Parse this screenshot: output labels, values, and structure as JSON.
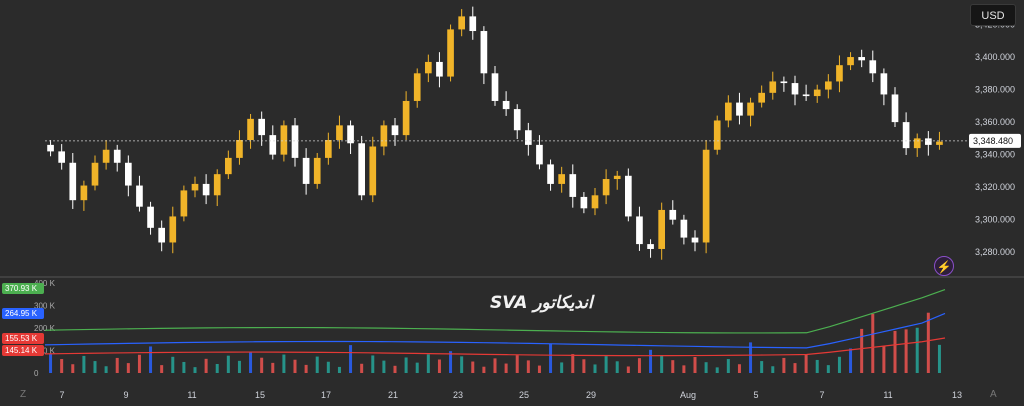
{
  "currency_button": "USD",
  "indicator_title": "اندیکاتور SVA",
  "corner_left": "Z",
  "corner_right": "A",
  "colors": {
    "background": "#2b2b2b",
    "bull": "#f0b429",
    "bear": "#ffffff",
    "vol_green": "#26a69a",
    "vol_red": "#ef5350",
    "line_green": "#4caf50",
    "line_blue": "#2962ff",
    "line_red": "#e53935",
    "text": "#d1d4dc",
    "grid": "#3a3a3a"
  },
  "chart_data": [
    {
      "type": "candlestick",
      "title": "",
      "ylim": [
        3266,
        3432
      ],
      "y_ticks": [
        "3,280.000",
        "3,300.000",
        "3,320.000",
        "3,340.000",
        "3,360.000",
        "3,380.000",
        "3,400.000",
        "3,420.000"
      ],
      "y_tick_values": [
        3280,
        3300,
        3320,
        3340,
        3360,
        3380,
        3400,
        3420
      ],
      "last_price_label": "3,348.480",
      "last_price": 3348.48,
      "x_ticks": [
        "7",
        "9",
        "11",
        "15",
        "17",
        "21",
        "23",
        "25",
        "29",
        "Aug",
        "5",
        "7",
        "11",
        "13"
      ],
      "closes": [
        3342,
        3335,
        3312,
        3321,
        3335,
        3343,
        3335,
        3321,
        3308,
        3295,
        3286,
        3302,
        3318,
        3322,
        3315,
        3328,
        3338,
        3349,
        3362,
        3352,
        3340,
        3358,
        3338,
        3322,
        3338,
        3349,
        3358,
        3347,
        3315,
        3345,
        3358,
        3352,
        3373,
        3390,
        3397,
        3388,
        3417,
        3425,
        3416,
        3390,
        3373,
        3368,
        3355,
        3346,
        3334,
        3322,
        3328,
        3314,
        3307,
        3315,
        3325,
        3327,
        3302,
        3285,
        3282,
        3306,
        3300,
        3289,
        3286,
        3343,
        3361,
        3372,
        3364,
        3372,
        3378,
        3385,
        3384,
        3377,
        3376,
        3380,
        3385,
        3395,
        3400,
        3398,
        3390,
        3377,
        3360,
        3344,
        3350,
        3346,
        3348
      ],
      "opens": [
        3346,
        3342,
        3335,
        3312,
        3321,
        3335,
        3343,
        3335,
        3321,
        3308,
        3295,
        3286,
        3302,
        3318,
        3322,
        3315,
        3328,
        3338,
        3349,
        3362,
        3352,
        3340,
        3358,
        3338,
        3322,
        3338,
        3349,
        3358,
        3347,
        3315,
        3345,
        3358,
        3352,
        3373,
        3390,
        3397,
        3388,
        3417,
        3425,
        3416,
        3390,
        3373,
        3368,
        3355,
        3346,
        3334,
        3322,
        3328,
        3314,
        3307,
        3315,
        3325,
        3327,
        3302,
        3285,
        3282,
        3306,
        3300,
        3289,
        3286,
        3343,
        3361,
        3372,
        3364,
        3372,
        3378,
        3385,
        3384,
        3377,
        3376,
        3380,
        3385,
        3395,
        3400,
        3398,
        3390,
        3377,
        3360,
        3344,
        3350,
        3346
      ],
      "volume": {
        "y_ticks": [
          "0",
          "100 K",
          "200 K",
          "300 K",
          "400 K"
        ],
        "y_tick_values": [
          0,
          100,
          200,
          300,
          400
        ],
        "labels": [
          "370.93 K",
          "264.95 K",
          "155.53 K",
          "145.14 K"
        ],
        "label_values": [
          370.93,
          264.95,
          155.53,
          145.14
        ]
      }
    }
  ]
}
